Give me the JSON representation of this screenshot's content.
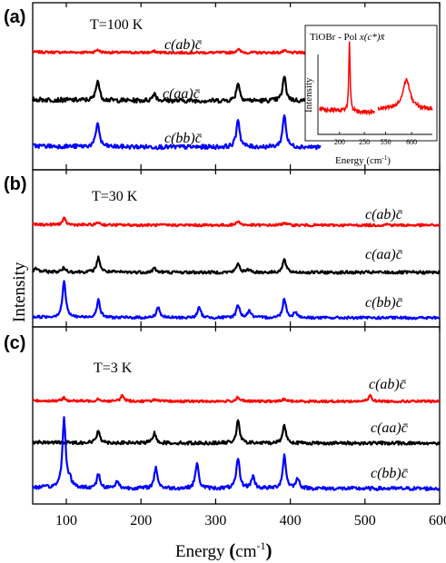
{
  "chart_data": {
    "type": "line",
    "xlabel": "Energy (cm⁻¹)",
    "xlabel_main": "Energy ",
    "xlabel_paren_open": "(",
    "xlabel_unit": "cm",
    "xlabel_exp": "-1",
    "xlabel_paren_close": ")",
    "ylabel": "Intensity",
    "xlim": [
      55,
      600
    ],
    "x_ticks": [
      "100",
      "200",
      "300",
      "400",
      "500",
      "600"
    ],
    "x_tick_values": [
      100,
      200,
      300,
      400,
      500,
      600
    ],
    "grid": false,
    "panels": [
      {
        "label": "(a)",
        "temperature": "T=100 K",
        "series": [
          {
            "name": "c(ab)c̄",
            "color": "#ff0000",
            "x_max": 440,
            "peaks": [
              [
                142,
                0.22
              ],
              [
                218,
                0.1
              ],
              [
                330,
                0.28
              ],
              [
                392,
                0.15
              ]
            ]
          },
          {
            "name": "c(aa)c̄",
            "color": "#000000",
            "x_max": 440,
            "peaks": [
              [
                142,
                0.85
              ],
              [
                218,
                0.32
              ],
              [
                330,
                0.75
              ],
              [
                392,
                1.0
              ]
            ]
          },
          {
            "name": "c(bb)c̄",
            "color": "#0000ff",
            "x_max": 440,
            "peaks": [
              [
                142,
                1.05
              ],
              [
                330,
                1.2
              ],
              [
                392,
                1.4
              ]
            ]
          }
        ],
        "inset": {
          "title": "TiOBr - Pol x(c*)x̄",
          "title_main": "TiOBr - Pol ",
          "title_pol": "x(c*)x̄",
          "xlabel": "Energy (cm⁻¹)",
          "xlabel_main": "Energy (cm",
          "xlabel_exp": "-1",
          "xlabel_close": ")",
          "ylabel": "Intensity",
          "x_ticks": [
            "200",
            "250",
            "550",
            "600"
          ],
          "x_tick_values": [
            200,
            250,
            550,
            600
          ],
          "color": "#ff0000",
          "segments": [
            {
              "xlim": [
                160,
                270
              ],
              "peaks": [
                [
                  220,
                  1.0
                ]
              ]
            },
            {
              "xlim": [
                535,
                640
              ],
              "peaks": [
                [
                  590,
                  0.42
                ]
              ]
            }
          ]
        }
      },
      {
        "label": "(b)",
        "temperature": "T=30 K",
        "series": [
          {
            "name": "c(ab)c̄",
            "color": "#ff0000",
            "x_max": 600,
            "peaks": [
              [
                97,
                0.45
              ],
              [
                143,
                0.2
              ],
              [
                330,
                0.32
              ],
              [
                392,
                0.2
              ],
              [
                530,
                0.08
              ]
            ]
          },
          {
            "name": "c(aa)c̄",
            "color": "#000000",
            "x_max": 600,
            "peaks": [
              [
                60,
                0.2
              ],
              [
                97,
                0.25
              ],
              [
                143,
                0.9
              ],
              [
                218,
                0.25
              ],
              [
                330,
                0.55
              ],
              [
                345,
                0.18
              ],
              [
                392,
                0.8
              ]
            ]
          },
          {
            "name": "c(bb)c̄",
            "color": "#0000ff",
            "x_max": 600,
            "peaks": [
              [
                97,
                2.5
              ],
              [
                143,
                1.2
              ],
              [
                223,
                0.75
              ],
              [
                278,
                0.7
              ],
              [
                330,
                0.9
              ],
              [
                345,
                0.5
              ],
              [
                392,
                1.35
              ],
              [
                407,
                0.4
              ]
            ]
          }
        ]
      },
      {
        "label": "(c)",
        "temperature": "T=3 K",
        "series": [
          {
            "name": "c(ab)c̄",
            "color": "#ff0000",
            "x_max": 600,
            "peaks": [
              [
                97,
                0.25
              ],
              [
                143,
                0.2
              ],
              [
                175,
                0.45
              ],
              [
                218,
                0.15
              ],
              [
                330,
                0.35
              ],
              [
                392,
                0.2
              ],
              [
                507,
                0.45
              ]
            ]
          },
          {
            "name": "c(aa)c̄",
            "color": "#000000",
            "x_max": 600,
            "peaks": [
              [
                143,
                0.7
              ],
              [
                218,
                0.55
              ],
              [
                330,
                1.2
              ],
              [
                392,
                1.0
              ]
            ]
          },
          {
            "name": "c(bb)c̄",
            "color": "#0000ff",
            "x_max": 600,
            "peaks": [
              [
                97,
                3.5
              ],
              [
                105,
                0.35
              ],
              [
                143,
                0.7
              ],
              [
                168,
                0.35
              ],
              [
                220,
                1.05
              ],
              [
                275,
                1.25
              ],
              [
                330,
                1.5
              ],
              [
                350,
                0.6
              ],
              [
                392,
                1.65
              ],
              [
                410,
                0.5
              ]
            ]
          }
        ]
      }
    ]
  }
}
